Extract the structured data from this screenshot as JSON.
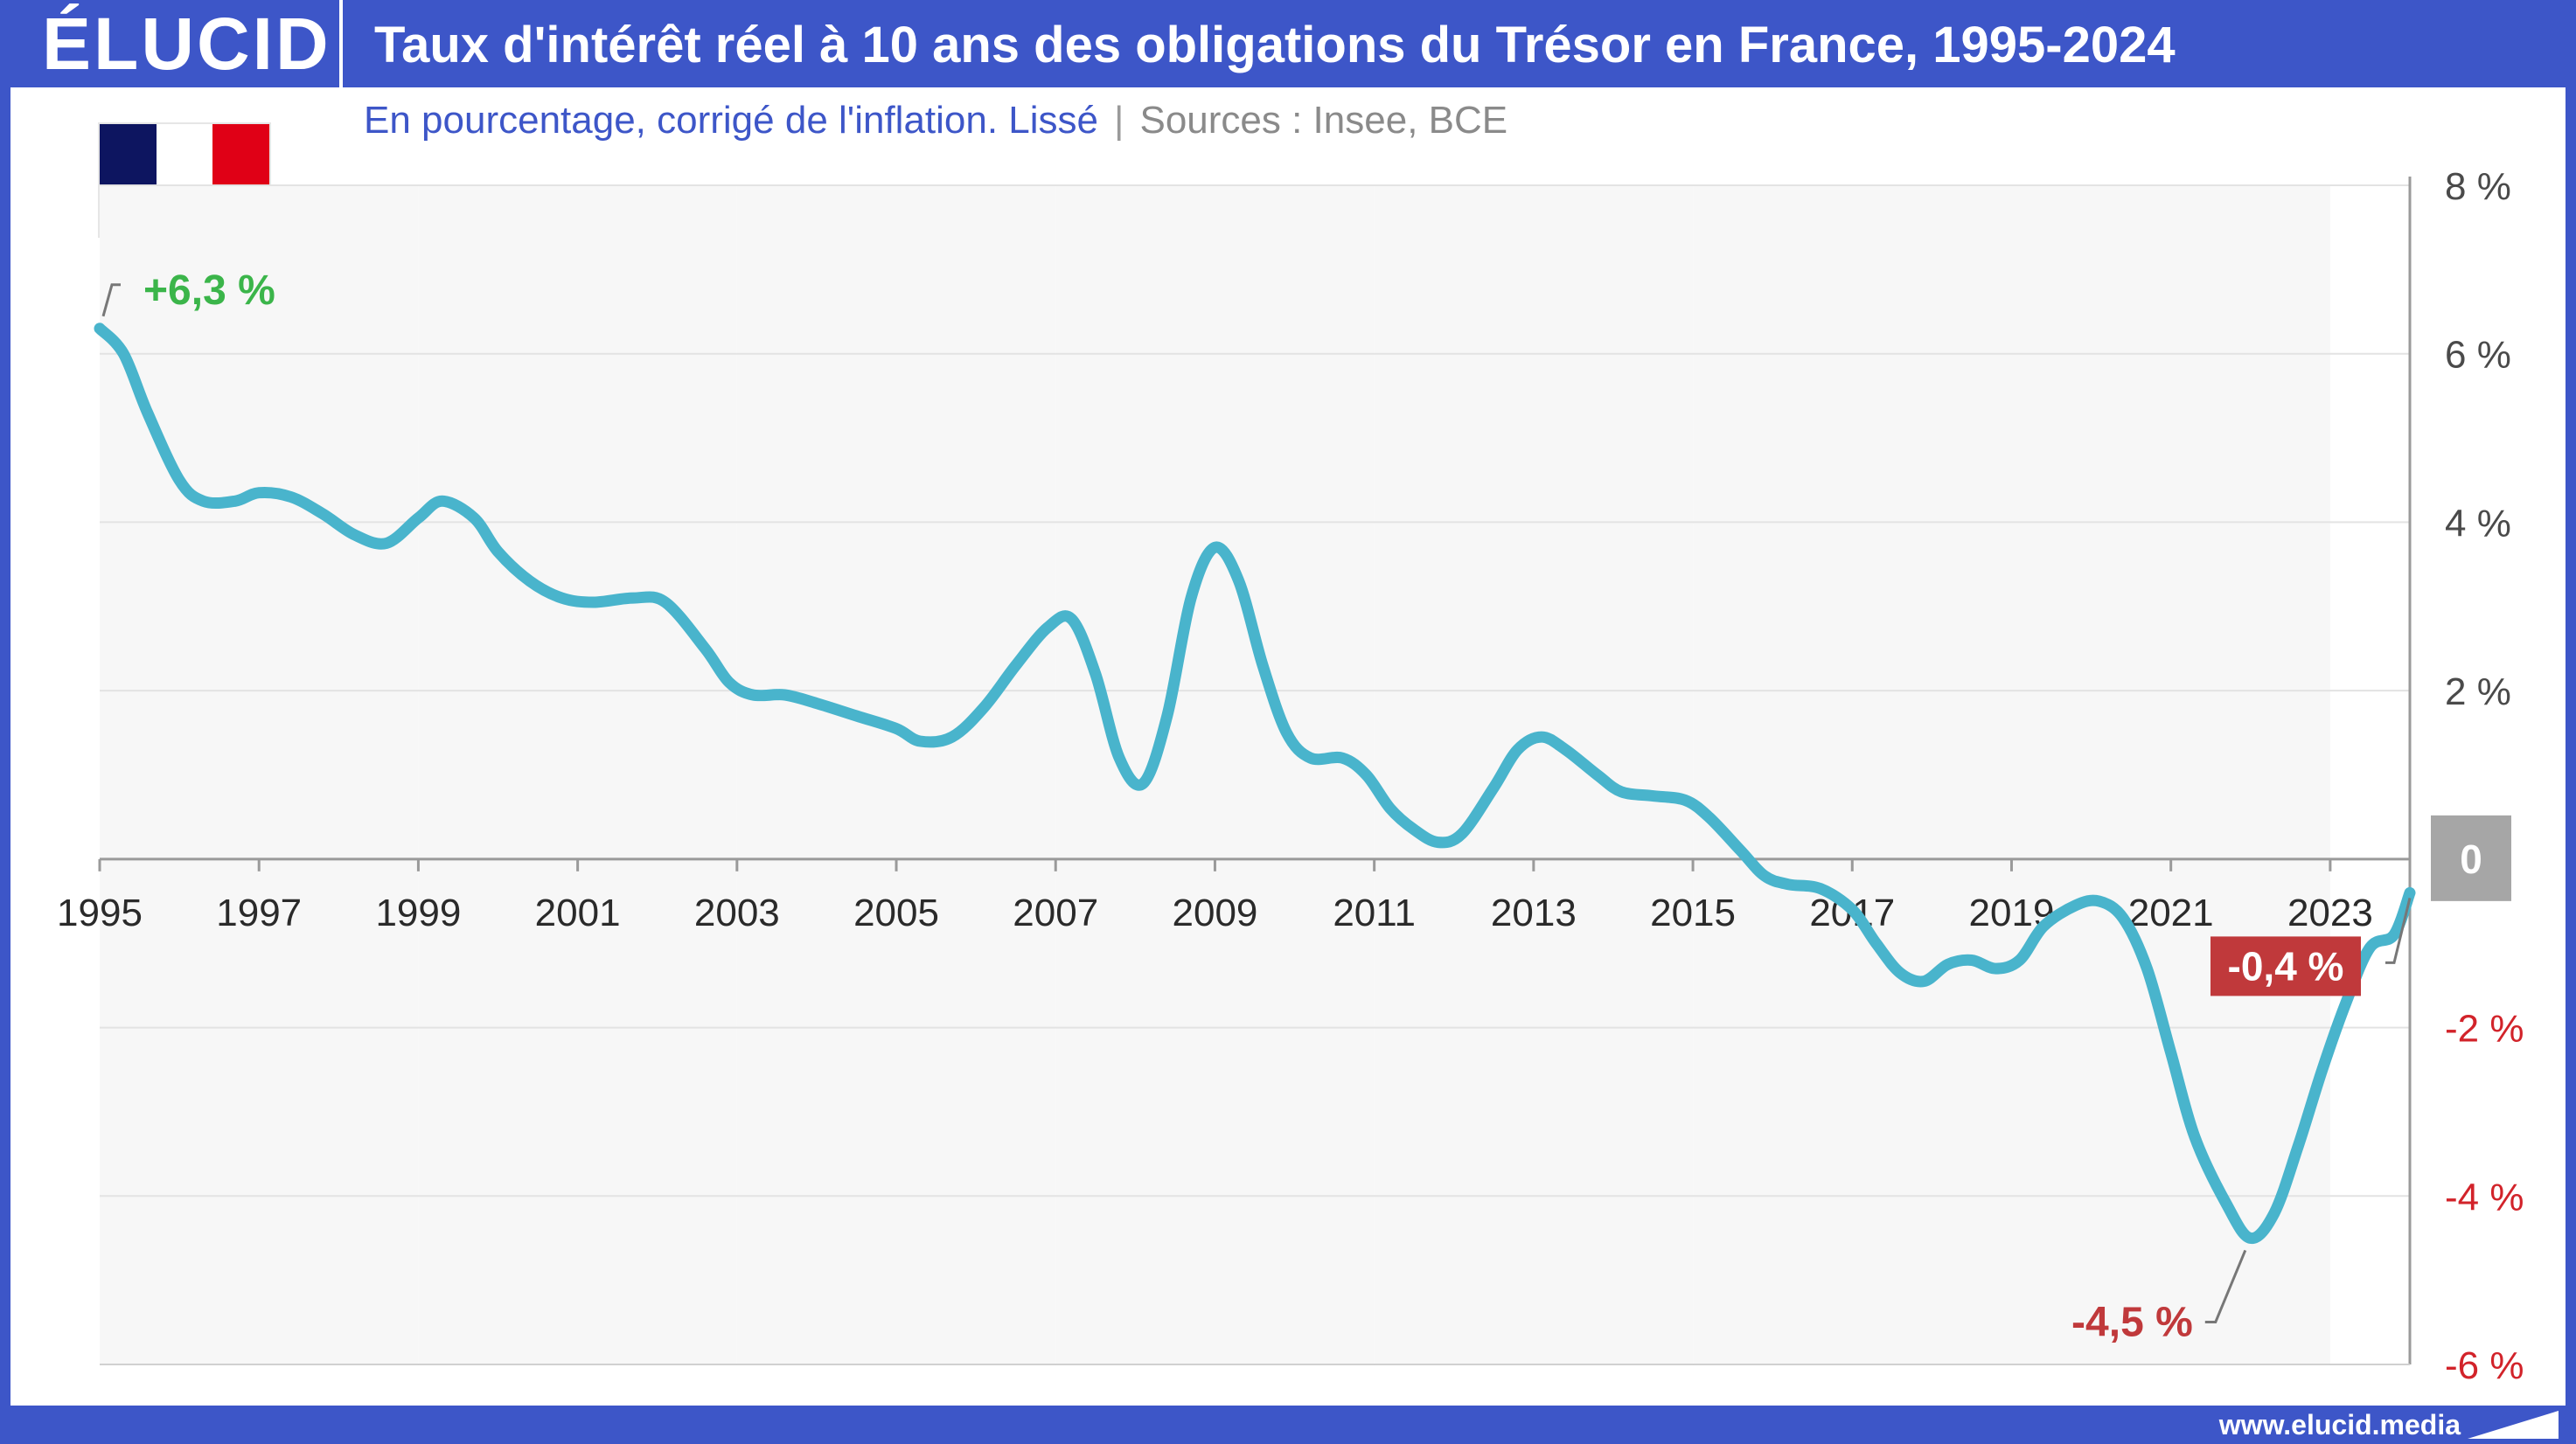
{
  "brand": {
    "logo": "ÉLUCID",
    "website": "www.elucid.media"
  },
  "header": {
    "title": "Taux d'intérêt réel à 10 ans des obligations du Trésor en France, 1995-2024",
    "subtitle": "En pourcentage, corrigé de l'inflation. Lissé",
    "separator": "|",
    "sources": "Sources : Insee, BCE"
  },
  "flag": {
    "colors": [
      "#0d1560",
      "#ffffff",
      "#e00016"
    ]
  },
  "colors": {
    "line": "#49b4cc",
    "positive_label": "#3bb54a",
    "negative_label": "#c0393b",
    "neg_tick": "#d2232a",
    "zero_badge": "#a6a6a6",
    "band": "#f7f7f7",
    "grid": "#e3e3e3",
    "brand_blue": "#3d56c8"
  },
  "chart_data": {
    "type": "line",
    "title": "Taux d'intérêt réel à 10 ans des obligations du Trésor en France, 1995-2024",
    "ylim": [
      -6,
      8
    ],
    "xlim": [
      1995,
      2024
    ],
    "grid": true,
    "x_ticks": [
      "1995",
      "1997",
      "1999",
      "2001",
      "2003",
      "2005",
      "2007",
      "2009",
      "2011",
      "2013",
      "2015",
      "2017",
      "2019",
      "2021",
      "2023"
    ],
    "y_ticks": [
      {
        "value": 8,
        "label": "8 %"
      },
      {
        "value": 6,
        "label": "6 %"
      },
      {
        "value": 4,
        "label": "4 %"
      },
      {
        "value": 2,
        "label": "2 %"
      },
      {
        "value": 0,
        "label": "0"
      },
      {
        "value": -2,
        "label": "-2 %"
      },
      {
        "value": -4,
        "label": "-4 %"
      },
      {
        "value": -6,
        "label": "-6 %"
      }
    ],
    "series": [
      {
        "x": [
          1995.0,
          1995.3,
          1995.6,
          1996.0,
          1996.3,
          1996.7,
          1997.0,
          1997.4,
          1997.8,
          1998.2,
          1998.6,
          1999.0,
          1999.3,
          1999.7,
          2000.0,
          2000.4,
          2000.8,
          2001.2,
          2001.7,
          2002.1,
          2002.6,
          2002.9,
          2003.2,
          2003.6,
          2004.0,
          2004.5,
          2005.0,
          2005.3,
          2005.7,
          2006.1,
          2006.5,
          2006.9,
          2007.2,
          2007.5,
          2007.8,
          2008.1,
          2008.4,
          2008.7,
          2009.0,
          2009.3,
          2009.6,
          2009.9,
          2010.2,
          2010.6,
          2010.9,
          2011.2,
          2011.5,
          2011.8,
          2012.1,
          2012.5,
          2012.8,
          2013.1,
          2013.4,
          2013.8,
          2014.1,
          2014.5,
          2014.9,
          2015.2,
          2015.6,
          2015.9,
          2016.2,
          2016.6,
          2017.0,
          2017.3,
          2017.6,
          2017.9,
          2018.2,
          2018.5,
          2018.8,
          2019.1,
          2019.4,
          2019.8,
          2020.1,
          2020.4,
          2020.7,
          2021.0,
          2021.3,
          2021.7,
          2022.0,
          2022.3,
          2022.6,
          2022.9,
          2023.2,
          2023.5,
          2023.8,
          2024.0
        ],
        "y": [
          6.3,
          6.0,
          5.3,
          4.5,
          4.25,
          4.25,
          4.35,
          4.3,
          4.1,
          3.85,
          3.75,
          4.05,
          4.25,
          4.05,
          3.65,
          3.3,
          3.1,
          3.05,
          3.1,
          3.05,
          2.5,
          2.1,
          1.95,
          1.95,
          1.85,
          1.7,
          1.55,
          1.4,
          1.45,
          1.8,
          2.3,
          2.75,
          2.85,
          2.2,
          1.2,
          0.9,
          1.7,
          3.1,
          3.7,
          3.3,
          2.3,
          1.5,
          1.2,
          1.2,
          1.0,
          0.6,
          0.35,
          0.2,
          0.3,
          0.85,
          1.3,
          1.45,
          1.3,
          1.0,
          0.8,
          0.75,
          0.7,
          0.5,
          0.1,
          -0.2,
          -0.3,
          -0.35,
          -0.6,
          -1.0,
          -1.35,
          -1.45,
          -1.25,
          -1.2,
          -1.3,
          -1.2,
          -0.8,
          -0.55,
          -0.5,
          -0.7,
          -1.3,
          -2.3,
          -3.3,
          -4.1,
          -4.5,
          -4.2,
          -3.4,
          -2.5,
          -1.7,
          -1.05,
          -0.9,
          -0.4
        ]
      }
    ],
    "annotations": [
      {
        "x": 1995.0,
        "y": 6.3,
        "label": "+6,3 %",
        "kind": "positive"
      },
      {
        "x": 2022.0,
        "y": -4.5,
        "label": "-4,5 %",
        "kind": "negative"
      },
      {
        "x": 2024.0,
        "y": -0.4,
        "label": "-0,4 %",
        "kind": "badge"
      }
    ]
  }
}
